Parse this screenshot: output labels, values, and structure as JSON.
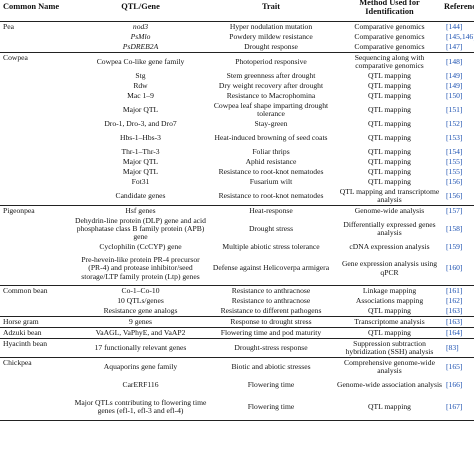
{
  "headers": [
    "Common Name",
    "QTL/Gene",
    "Trait",
    "Method Used for Identification",
    "References"
  ],
  "groups": [
    {
      "name": "Pea",
      "rows": [
        {
          "gene": "nod3",
          "trait": "Hyper nodulation mutation",
          "method": "Comparative genomics",
          "ref": "[144]"
        },
        {
          "gene": "PsMlo",
          "trait": "Powdery mildew resistance",
          "method": "Comparative genomics",
          "ref": "[145,146]"
        },
        {
          "gene": "PsDREB2A",
          "trait": "Drought response",
          "method": "Comparative genomics",
          "ref": "[147]"
        }
      ]
    },
    {
      "name": "Cowpea",
      "rows": [
        {
          "gene": "Cowpea Co-like gene family",
          "trait": "Photoperiod responsive",
          "method": "Sequencing along with comparative genomics",
          "ref": "[148]"
        },
        {
          "gene": "Stg",
          "trait": "Stem greenness after drought",
          "method": "QTL mapping",
          "ref": "[149]"
        },
        {
          "gene": "Rdw",
          "trait": "Dry weight recovery after drought",
          "method": "QTL mapping",
          "ref": "[149]"
        },
        {
          "gene": "Mac 1–9",
          "trait": "Resistance to Macrophomina",
          "method": "QTL mapping",
          "ref": "[150]"
        },
        {
          "gene": "Major QTL",
          "trait": "Cowpea leaf shape imparting drought tolerance",
          "method": "QTL mapping",
          "ref": "[151]"
        },
        {
          "gene": "Dro-1, Dro-3, and Dro7",
          "trait": "Stay-green",
          "method": "QTL mapping",
          "ref": "[152]"
        },
        {
          "gene": "Hbs-1–Hbs-3",
          "trait": "Heat-induced browning of seed coats",
          "method": "QTL mapping",
          "ref": "[153]"
        },
        {
          "gene": "Thr-1–Thr-3",
          "trait": "Foliar thrips",
          "method": "QTL mapping",
          "ref": "[154]"
        },
        {
          "gene": "Major QTL",
          "trait": "Aphid resistance",
          "method": "QTL mapping",
          "ref": "[155]"
        },
        {
          "gene": "Major QTL",
          "trait": "Resistance to root-knot nematodes",
          "method": "QTL mapping",
          "ref": "[155]"
        },
        {
          "gene": "Fot31",
          "trait": "Fusarium wilt",
          "method": "QTL mapping",
          "ref": "[156]"
        },
        {
          "gene": "Candidate genes",
          "trait": "Resistance to root-knot nematodes",
          "method": "QTL mapping and transcriptome analysis",
          "ref": "[156]"
        }
      ]
    },
    {
      "name": "Pigeonpea",
      "rows": [
        {
          "gene": "Hsf genes",
          "trait": "Heat-response",
          "method": "Genome-wide analysis",
          "ref": "[157]"
        },
        {
          "gene": "Dehydrin-line protein (DLP) gene and acid phosphatase class B family protein (APB) gene",
          "trait": "Drought stress",
          "method": "Differentially expressed genes analysis",
          "ref": "[158]"
        },
        {
          "gene": "Cyclophilin (CcCYP) gene",
          "trait": "Multiple abiotic stress tolerance",
          "method": "cDNA expression analysis",
          "ref": "[159]"
        },
        {
          "gene": "Pre-hevein-like protein PR-4 precursor (PR-4) and protease inhibitor/seed storage/LTP family protein (Ltp) genes",
          "trait": "Defense against Helicoverpa armigera",
          "method": "Gene expression analysis using qPCR",
          "ref": "[160]"
        }
      ]
    },
    {
      "name": "Common bean",
      "rows": [
        {
          "gene": "Co-1–Co-10",
          "trait": "Resistance to anthracnose",
          "method": "Linkage mapping",
          "ref": "[161]"
        },
        {
          "gene": "10 QTLs/genes",
          "trait": "Resistance to anthracnose",
          "method": "Associations mapping",
          "ref": "[162]"
        },
        {
          "gene": "Resistance gene analogs",
          "trait": "Resistance to different pathogens",
          "method": "QTL mapping",
          "ref": "[163]"
        }
      ]
    },
    {
      "name": "Horse gram",
      "rows": [
        {
          "gene": "9 genes",
          "trait": "Response to drought stress",
          "method": "Transcriptome analysis",
          "ref": "[163]"
        }
      ]
    },
    {
      "name": "Adzuki bean",
      "rows": [
        {
          "gene": "VaAGL, VaPhyE, and VaAP2",
          "trait": "Flowering time and pod maturity",
          "method": "QTL mapping",
          "ref": "[164]"
        }
      ]
    },
    {
      "name": "Hyacinth bean",
      "rows": [
        {
          "gene": "17 functionally relevant genes",
          "trait": "Drought-stress response",
          "method": "Suppression subtraction hybridization (SSH) analysis",
          "ref": "[83]"
        }
      ]
    },
    {
      "name": "Chickpea",
      "rows": [
        {
          "gene": "Aquaporins gene family",
          "trait": "Biotic and abiotic stresses",
          "method": "Comprehensive genome-wide analysis",
          "ref": "[165]"
        },
        {
          "gene": "CarERF116",
          "trait": "Flowering time",
          "method": "Genome-wide association analysis",
          "ref": "[166]"
        },
        {
          "gene": "Major QTLs contributing to flowering time genes (efl-1, efl-3 and efl-4)",
          "trait": "Flowering time",
          "method": "QTL mapping",
          "ref": "[167]"
        }
      ]
    }
  ]
}
